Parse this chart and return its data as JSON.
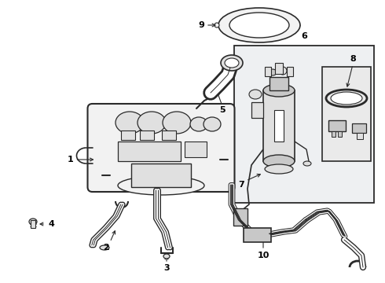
{
  "background_color": "#ffffff",
  "line_color": "#2a2a2a",
  "light_fill": "#f2f2f2",
  "mid_fill": "#e0e0e0",
  "dark_fill": "#c8c8c8",
  "box_fill": "#eef0f2",
  "fig_width": 4.9,
  "fig_height": 3.6,
  "dpi": 100
}
